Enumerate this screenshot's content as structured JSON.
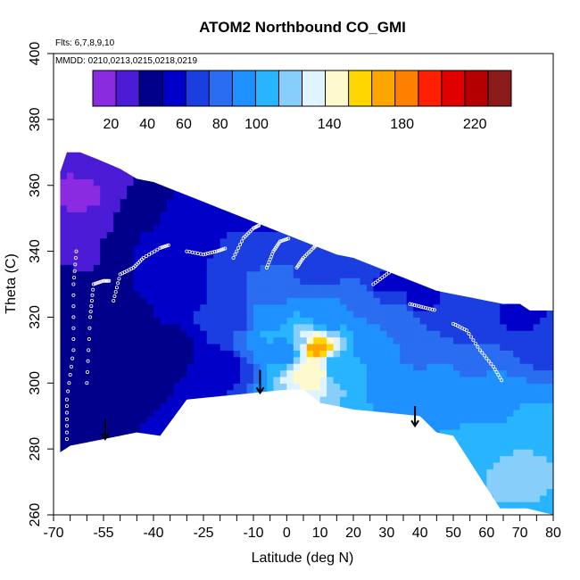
{
  "chart_data": {
    "type": "heatmap",
    "title": "ATOM2 Northbound CO_GMI",
    "notes": [
      "Flts: 6,7,8,9,10",
      "MMDD: 0210,0213,0215,0218,0219"
    ],
    "xlabel": "Latitude (deg N)",
    "ylabel": "Theta (C)",
    "xlim": [
      -70,
      80
    ],
    "ylim": [
      260,
      400
    ],
    "x_ticks": [
      -70,
      -55,
      -40,
      -25,
      -10,
      0,
      10,
      20,
      30,
      40,
      50,
      60,
      70,
      80
    ],
    "x_tick_labels": [
      "-70",
      "-55",
      "-40",
      "-25",
      "-10",
      "0",
      "10",
      "20",
      "30",
      "40",
      "50",
      "60",
      "70",
      "80"
    ],
    "x_minor_ticks": [
      -65,
      -60,
      -50,
      -45,
      -35,
      -30,
      -20,
      -15,
      -5,
      5,
      15,
      25,
      35,
      45,
      55,
      65,
      75
    ],
    "y_ticks": [
      260,
      280,
      300,
      320,
      340,
      360,
      380,
      400
    ],
    "y_tick_labels": [
      "260",
      "280",
      "300",
      "320",
      "340",
      "360",
      "380",
      "400"
    ],
    "colorbar": {
      "min": 10,
      "max": 240,
      "ticks": [
        20,
        40,
        60,
        80,
        100,
        140,
        180,
        220
      ],
      "tick_labels": [
        "20",
        "40",
        "60",
        "80",
        "100",
        "140",
        "180",
        "220"
      ],
      "colors": [
        "#8a2be2",
        "#4b1bd6",
        "#00008b",
        "#0000c8",
        "#1a3ee0",
        "#2a6df0",
        "#1e90ff",
        "#28b4ff",
        "#87cefa",
        "#e0f4ff",
        "#fffacd",
        "#ffd700",
        "#ffa500",
        "#ff7f00",
        "#ff2000",
        "#e00000",
        "#b40000",
        "#8b1a1a"
      ]
    },
    "top_boundary": [
      [
        -68,
        364
      ],
      [
        -66,
        370
      ],
      [
        -62,
        370
      ],
      [
        -57,
        368
      ],
      [
        -50,
        365
      ],
      [
        -45,
        362
      ],
      [
        -40,
        361
      ],
      [
        -35,
        359
      ],
      [
        -30,
        357
      ],
      [
        -25,
        355
      ],
      [
        -20,
        353
      ],
      [
        -15,
        351
      ],
      [
        -10,
        349
      ],
      [
        -5,
        347
      ],
      [
        0,
        345
      ],
      [
        5,
        343
      ],
      [
        10,
        341
      ],
      [
        15,
        339
      ],
      [
        20,
        338
      ],
      [
        25,
        336
      ],
      [
        30,
        334
      ],
      [
        35,
        332
      ],
      [
        40,
        330
      ],
      [
        45,
        328
      ],
      [
        50,
        327
      ],
      [
        55,
        326
      ],
      [
        60,
        325
      ],
      [
        65,
        324
      ],
      [
        70,
        324
      ],
      [
        73,
        322
      ],
      [
        80,
        322
      ]
    ],
    "bottom_boundary": [
      [
        80,
        260
      ],
      [
        72,
        262
      ],
      [
        64,
        262
      ],
      [
        50,
        284
      ],
      [
        45,
        285
      ],
      [
        40,
        290
      ],
      [
        30,
        291
      ],
      [
        20,
        292
      ],
      [
        10,
        294
      ],
      [
        5,
        298
      ],
      [
        0,
        298
      ],
      [
        -10,
        297
      ],
      [
        -20,
        296
      ],
      [
        -30,
        295
      ],
      [
        -38,
        284
      ],
      [
        -45,
        285
      ],
      [
        -55,
        283
      ],
      [
        -65,
        281
      ],
      [
        -68,
        279
      ]
    ],
    "surface_values": [
      [
        -68,
        350,
        28
      ],
      [
        -64,
        355,
        20
      ],
      [
        -60,
        355,
        22
      ],
      [
        -56,
        350,
        30
      ],
      [
        -60,
        340,
        32
      ],
      [
        -66,
        330,
        38
      ],
      [
        -64,
        310,
        44
      ],
      [
        -60,
        290,
        46
      ],
      [
        -50,
        340,
        46
      ],
      [
        -45,
        350,
        48
      ],
      [
        -40,
        340,
        52
      ],
      [
        -50,
        320,
        45
      ],
      [
        -45,
        305,
        40
      ],
      [
        -35,
        310,
        42
      ],
      [
        -30,
        330,
        56
      ],
      [
        -25,
        345,
        60
      ],
      [
        -20,
        330,
        62
      ],
      [
        -15,
        320,
        64
      ],
      [
        -20,
        305,
        55
      ],
      [
        -10,
        340,
        68
      ],
      [
        -5,
        330,
        82
      ],
      [
        -5,
        315,
        100
      ],
      [
        -8,
        320,
        92
      ],
      [
        0,
        310,
        88
      ],
      [
        5,
        312,
        120
      ],
      [
        8,
        311,
        176
      ],
      [
        8,
        304,
        150
      ],
      [
        12,
        320,
        95
      ],
      [
        15,
        305,
        102
      ],
      [
        20,
        325,
        85
      ],
      [
        25,
        310,
        96
      ],
      [
        30,
        300,
        98
      ],
      [
        35,
        320,
        80
      ],
      [
        40,
        310,
        82
      ],
      [
        45,
        300,
        92
      ],
      [
        50,
        320,
        68
      ],
      [
        55,
        305,
        86
      ],
      [
        60,
        295,
        96
      ],
      [
        62,
        280,
        108
      ],
      [
        68,
        275,
        115
      ],
      [
        75,
        290,
        100
      ],
      [
        78,
        310,
        72
      ],
      [
        70,
        320,
        60
      ],
      [
        30,
        330,
        60
      ],
      [
        10,
        335,
        66
      ],
      [
        -10,
        350,
        58
      ],
      [
        40,
        325,
        58
      ],
      [
        55,
        320,
        62
      ]
    ],
    "flight_tracks": [
      [
        [
          -66,
          283
        ],
        [
          -66,
          295
        ],
        [
          -64,
          310
        ],
        [
          -64,
          330
        ],
        [
          -63,
          342
        ]
      ],
      [
        [
          -60,
          300
        ],
        [
          -59,
          320
        ],
        [
          -58,
          330
        ],
        [
          -55,
          331
        ],
        [
          -53,
          331
        ]
      ],
      [
        [
          -52,
          325
        ],
        [
          -50,
          333
        ],
        [
          -46,
          335
        ],
        [
          -43,
          338
        ],
        [
          -38,
          341
        ],
        [
          -35,
          342
        ]
      ],
      [
        [
          -30,
          340
        ],
        [
          -25,
          339
        ],
        [
          -21,
          340
        ],
        [
          -18,
          341
        ]
      ],
      [
        [
          -16,
          338
        ],
        [
          -13,
          344
        ],
        [
          -10,
          347
        ],
        [
          -8,
          348
        ]
      ],
      [
        [
          -6,
          335
        ],
        [
          -4,
          340
        ],
        [
          -2,
          343
        ],
        [
          1,
          344
        ]
      ],
      [
        [
          3,
          335
        ],
        [
          5,
          338
        ],
        [
          8,
          341
        ],
        [
          10,
          343
        ]
      ],
      [
        [
          14,
          340
        ],
        [
          16,
          344
        ],
        [
          19,
          345
        ],
        [
          21,
          343
        ]
      ],
      [
        [
          26,
          330
        ],
        [
          30,
          333
        ],
        [
          34,
          336
        ]
      ],
      [
        [
          37,
          324
        ],
        [
          41,
          323
        ],
        [
          45,
          322
        ]
      ],
      [
        [
          50,
          318
        ],
        [
          54,
          316
        ],
        [
          58,
          310
        ],
        [
          62,
          305
        ],
        [
          65,
          300
        ]
      ]
    ],
    "arrows": [
      [
        -54.5,
        289,
        283
      ],
      [
        -8,
        304,
        297
      ],
      [
        38.5,
        293,
        287
      ]
    ]
  }
}
